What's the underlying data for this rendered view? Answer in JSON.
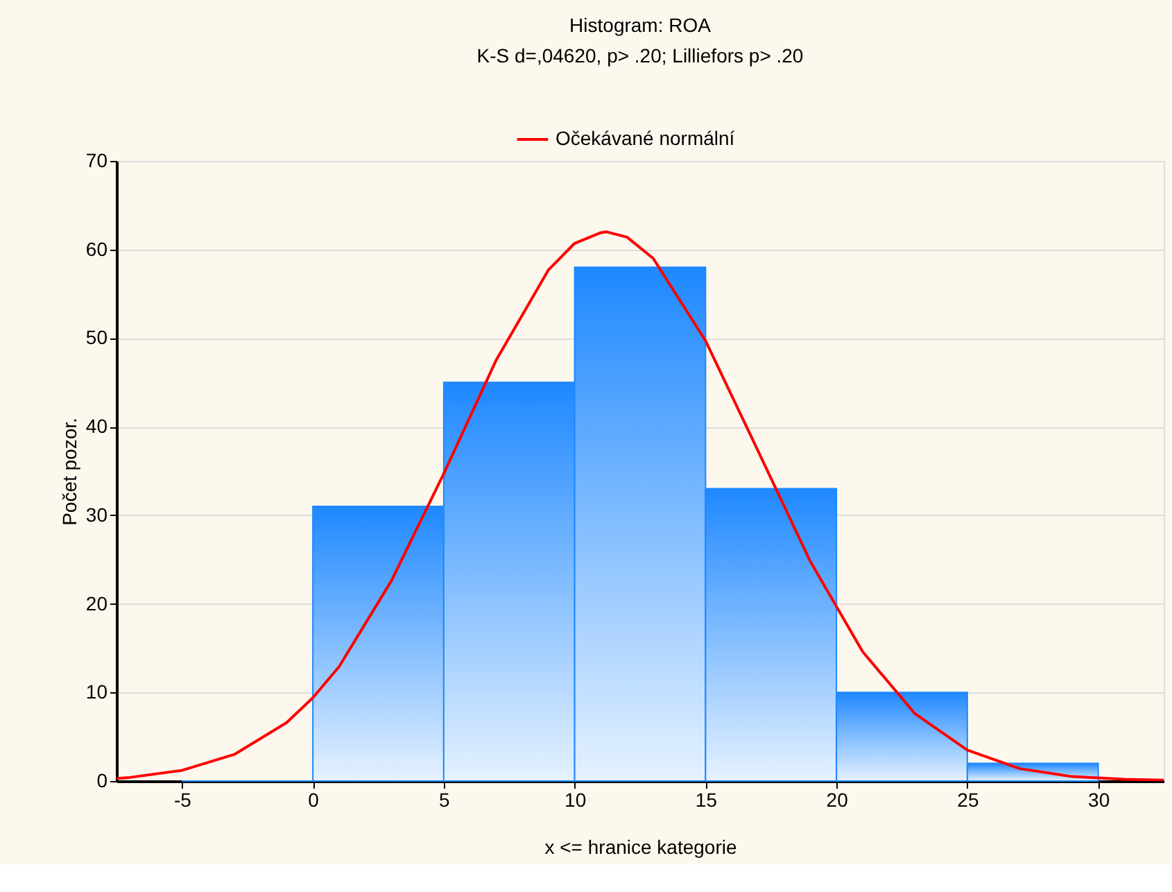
{
  "chart_data": {
    "type": "histogram",
    "title": "Histogram: ROA",
    "subtitle": "K-S d=,04620, p> .20; Lilliefors p> .20",
    "xlabel": "x <= hranice kategorie",
    "ylabel": "Počet pozor.",
    "bins": [
      -5,
      0,
      5,
      10,
      15,
      20,
      25,
      30
    ],
    "values": [
      0,
      31,
      45,
      58,
      33,
      10,
      2
    ],
    "color": "#1e88ff",
    "series": [
      {
        "type": "line",
        "name": "Očekávané normální",
        "color": "#ff0000",
        "x": [
          -7.5,
          -7,
          -5,
          -3,
          -1,
          0,
          1,
          3,
          5,
          7,
          9,
          10,
          11,
          11.2,
          12,
          13,
          15,
          17,
          19,
          21,
          23,
          25,
          27,
          29,
          31,
          32.5
        ],
        "values": [
          0.3,
          0.4,
          1.2,
          3.0,
          6.6,
          9.4,
          12.9,
          22.6,
          34.7,
          47.5,
          57.7,
          60.7,
          61.9,
          62,
          61.4,
          59,
          49.7,
          37.3,
          24.8,
          14.6,
          7.6,
          3.5,
          1.4,
          0.5,
          0.2,
          0.1
        ]
      }
    ],
    "xlim": [
      -7.5,
      32.5
    ],
    "xticks": [
      -5,
      0,
      5,
      10,
      15,
      20,
      25,
      30
    ],
    "ylim": [
      0,
      70
    ],
    "yticks": [
      0,
      10,
      20,
      30,
      40,
      50,
      60,
      70
    ],
    "grid": "y",
    "legend": "top"
  }
}
